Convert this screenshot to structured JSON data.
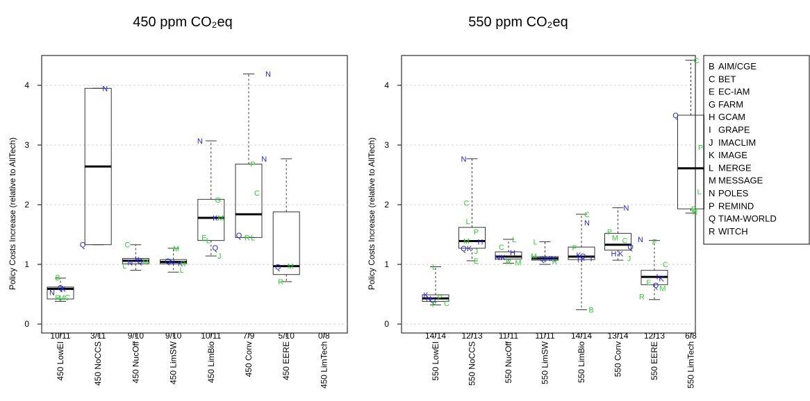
{
  "colors": {
    "blue": "#2222dd",
    "green": "#33cc33",
    "grid": "#d0d0d0",
    "box": "#333333"
  },
  "legend": {
    "items": [
      {
        "code": "B",
        "name": "AIM/CGE"
      },
      {
        "code": "C",
        "name": "BET"
      },
      {
        "code": "E",
        "name": "EC-IAM"
      },
      {
        "code": "G",
        "name": "FARM"
      },
      {
        "code": "H",
        "name": "GCAM"
      },
      {
        "code": "I",
        "name": "GRAPE"
      },
      {
        "code": "J",
        "name": "IMACLIM"
      },
      {
        "code": "K",
        "name": "IMAGE"
      },
      {
        "code": "L",
        "name": "MERGE"
      },
      {
        "code": "M",
        "name": "MESSAGE"
      },
      {
        "code": "N",
        "name": "POLES"
      },
      {
        "code": "P",
        "name": "REMIND"
      },
      {
        "code": "Q",
        "name": "TIAM-WORLD"
      },
      {
        "code": "R",
        "name": "WITCH"
      }
    ]
  },
  "chart_data": [
    {
      "type": "box",
      "title": "450 ppm CO₂eq",
      "ylabel": "Policy Costs Increase (relative to AllTech)",
      "ylim": [
        -0.15,
        4.5
      ],
      "yticks": [
        0,
        1,
        2,
        3,
        4
      ],
      "grid": true,
      "categories": [
        "450 LowEI",
        "450 NoCCS",
        "450 NucOff",
        "450 LimSW",
        "450 LimBio",
        "450 Conv",
        "450 EERE",
        "450 LimTech"
      ],
      "ratios": [
        "10/11",
        "3/11",
        "9/10",
        "9/10",
        "10/11",
        "7/9",
        "5/10",
        "0/8"
      ],
      "boxes": [
        {
          "wlo": 0.38,
          "q1": 0.42,
          "med": 0.59,
          "q3": 0.62,
          "whi": 0.77
        },
        {
          "wlo": 1.33,
          "q1": 1.33,
          "med": 2.64,
          "q3": 3.95,
          "whi": 3.95
        },
        {
          "wlo": 0.9,
          "q1": 1.01,
          "med": 1.06,
          "q3": 1.1,
          "whi": 1.33
        },
        {
          "wlo": 0.87,
          "q1": 1.01,
          "med": 1.04,
          "q3": 1.08,
          "whi": 1.27
        },
        {
          "wlo": 1.14,
          "q1": 1.4,
          "med": 1.78,
          "q3": 2.09,
          "whi": 3.07
        },
        {
          "wlo": 1.45,
          "q1": 1.45,
          "med": 1.84,
          "q3": 2.68,
          "whi": 4.19
        },
        {
          "wlo": 0.71,
          "q1": 0.83,
          "med": 0.97,
          "q3": 1.88,
          "whi": 2.77
        },
        null
      ],
      "points": [
        [
          {
            "m": "B",
            "y": 0.78,
            "dx": -4,
            "c": "green"
          },
          {
            "m": "N",
            "y": 0.53,
            "dx": -12,
            "c": "blue"
          },
          {
            "m": "Q",
            "y": 0.61,
            "dx": 0,
            "c": "blue"
          },
          {
            "m": "K",
            "y": 0.59,
            "dx": 4,
            "c": "blue"
          },
          {
            "m": "C",
            "y": 0.45,
            "dx": 10,
            "c": "green"
          },
          {
            "m": "M",
            "y": 0.44,
            "dx": 2,
            "c": "green"
          },
          {
            "m": "R",
            "y": 0.44,
            "dx": -4,
            "c": "green"
          }
        ],
        [
          {
            "m": "N",
            "y": 3.95,
            "dx": 10,
            "c": "blue"
          },
          {
            "m": "Q",
            "y": 1.33,
            "dx": -22,
            "c": "blue"
          }
        ],
        [
          {
            "m": "C",
            "y": 1.33,
            "dx": -12,
            "c": "green"
          },
          {
            "m": "L",
            "y": 0.98,
            "dx": -16,
            "c": "green"
          },
          {
            "m": "N",
            "y": 1.03,
            "dx": -8,
            "c": "blue"
          },
          {
            "m": "K",
            "y": 1.08,
            "dx": 2,
            "c": "blue"
          },
          {
            "m": "Q",
            "y": 1.06,
            "dx": 6,
            "c": "blue"
          },
          {
            "m": "M",
            "y": 1.05,
            "dx": 14,
            "c": "green"
          }
        ],
        [
          {
            "m": "M",
            "y": 1.27,
            "dx": 4,
            "c": "green"
          },
          {
            "m": "Q",
            "y": 1.06,
            "dx": -8,
            "c": "blue"
          },
          {
            "m": "N",
            "y": 1.04,
            "dx": -2,
            "c": "blue"
          },
          {
            "m": "K",
            "y": 1.02,
            "dx": 10,
            "c": "blue"
          },
          {
            "m": "R",
            "y": 1.01,
            "dx": 14,
            "c": "green"
          },
          {
            "m": "L",
            "y": 0.91,
            "dx": 12,
            "c": "green"
          }
        ],
        [
          {
            "m": "N",
            "y": 3.07,
            "dx": -16,
            "c": "blue"
          },
          {
            "m": "G",
            "y": 2.08,
            "dx": 10,
            "c": "green"
          },
          {
            "m": "K",
            "y": 1.78,
            "dx": 6,
            "c": "blue"
          },
          {
            "m": "M",
            "y": 1.78,
            "dx": 14,
            "c": "green"
          },
          {
            "m": "E",
            "y": 1.45,
            "dx": -10,
            "c": "green"
          },
          {
            "m": "L",
            "y": 1.4,
            "dx": -4,
            "c": "green"
          },
          {
            "m": "Q",
            "y": 1.28,
            "dx": 6,
            "c": "blue"
          },
          {
            "m": "J",
            "y": 1.14,
            "dx": 12,
            "c": "green"
          }
        ],
        [
          {
            "m": "N",
            "y": 4.19,
            "dx": 28,
            "c": "blue"
          },
          {
            "m": "P",
            "y": 2.68,
            "dx": 6,
            "c": "green"
          },
          {
            "m": "C",
            "y": 2.2,
            "dx": 12,
            "c": "green"
          },
          {
            "m": "Q",
            "y": 1.49,
            "dx": -14,
            "c": "blue"
          },
          {
            "m": "R",
            "y": 1.45,
            "dx": -2,
            "c": "green"
          },
          {
            "m": "L",
            "y": 1.45,
            "dx": 6,
            "c": "green"
          }
        ],
        [
          {
            "m": "N",
            "y": 2.77,
            "dx": -32,
            "c": "blue"
          },
          {
            "m": "Q",
            "y": 0.96,
            "dx": -12,
            "c": "blue"
          },
          {
            "m": "M",
            "y": 0.97,
            "dx": 6,
            "c": "green"
          },
          {
            "m": "R",
            "y": 0.71,
            "dx": -8,
            "c": "green"
          }
        ],
        []
      ]
    },
    {
      "type": "box",
      "title": "550 ppm CO₂eq",
      "ylabel": "Policy Costs Increase (relative to AllTech)",
      "ylim": [
        -0.15,
        4.5
      ],
      "yticks": [
        0,
        1,
        2,
        3,
        4
      ],
      "grid": true,
      "categories": [
        "550 LowEI",
        "550 NoCCS",
        "550 NucOff",
        "550 LimSW",
        "550 LimBio",
        "550 Conv",
        "550 EERE",
        "550 LimTech"
      ],
      "ratios": [
        "14/14",
        "12/13",
        "11/11",
        "11/11",
        "14/14",
        "13/14",
        "12/13",
        "6/8"
      ],
      "boxes": [
        {
          "wlo": 0.32,
          "q1": 0.38,
          "med": 0.43,
          "q3": 0.49,
          "whi": 0.96
        },
        {
          "wlo": 1.06,
          "q1": 1.27,
          "med": 1.39,
          "q3": 1.62,
          "whi": 2.77
        },
        {
          "wlo": 1.02,
          "q1": 1.09,
          "med": 1.13,
          "q3": 1.21,
          "whi": 1.42
        },
        {
          "wlo": 1.0,
          "q1": 1.07,
          "med": 1.1,
          "q3": 1.13,
          "whi": 1.38
        },
        {
          "wlo": 0.24,
          "q1": 1.08,
          "med": 1.13,
          "q3": 1.29,
          "whi": 1.84
        },
        {
          "wlo": 1.07,
          "q1": 1.24,
          "med": 1.33,
          "q3": 1.52,
          "whi": 1.95
        },
        {
          "wlo": 0.41,
          "q1": 0.66,
          "med": 0.79,
          "q3": 0.9,
          "whi": 1.4
        },
        {
          "wlo": 1.86,
          "q1": 1.93,
          "med": 2.61,
          "q3": 3.5,
          "whi": 4.42
        }
      ],
      "points": [
        [
          {
            "m": "L",
            "y": 0.96,
            "dx": -2,
            "c": "green"
          },
          {
            "m": "K",
            "y": 0.49,
            "dx": -14,
            "c": "blue"
          },
          {
            "m": "N",
            "y": 0.43,
            "dx": -10,
            "c": "blue"
          },
          {
            "m": "Q",
            "y": 0.4,
            "dx": -4,
            "c": "blue"
          },
          {
            "m": "P",
            "y": 0.45,
            "dx": 6,
            "c": "green"
          },
          {
            "m": "F",
            "y": 0.33,
            "dx": -2,
            "c": "green"
          },
          {
            "m": "C",
            "y": 0.35,
            "dx": 16,
            "c": "green"
          }
        ],
        [
          {
            "m": "N",
            "y": 2.77,
            "dx": -12,
            "c": "blue"
          },
          {
            "m": "C",
            "y": 2.03,
            "dx": -8,
            "c": "green"
          },
          {
            "m": "L",
            "y": 1.72,
            "dx": -6,
            "c": "green"
          },
          {
            "m": "P",
            "y": 1.55,
            "dx": 6,
            "c": "green"
          },
          {
            "m": "M",
            "y": 1.39,
            "dx": -8,
            "c": "green"
          },
          {
            "m": "H",
            "y": 1.38,
            "dx": 12,
            "c": "blue"
          },
          {
            "m": "Q",
            "y": 1.27,
            "dx": -12,
            "c": "blue"
          },
          {
            "m": "K",
            "y": 1.27,
            "dx": -4,
            "c": "blue"
          },
          {
            "m": "J",
            "y": 1.22,
            "dx": 6,
            "c": "green"
          },
          {
            "m": "E",
            "y": 1.06,
            "dx": 6,
            "c": "green"
          }
        ],
        [
          {
            "m": "L",
            "y": 1.42,
            "dx": 8,
            "c": "green"
          },
          {
            "m": "C",
            "y": 1.29,
            "dx": -10,
            "c": "green"
          },
          {
            "m": "N",
            "y": 1.12,
            "dx": -16,
            "c": "blue"
          },
          {
            "m": "K",
            "y": 1.12,
            "dx": -8,
            "c": "blue"
          },
          {
            "m": "H",
            "y": 1.2,
            "dx": 6,
            "c": "blue"
          },
          {
            "m": "R",
            "y": 1.05,
            "dx": 0,
            "c": "green"
          },
          {
            "m": "M",
            "y": 1.03,
            "dx": 14,
            "c": "green"
          }
        ],
        [
          {
            "m": "L",
            "y": 1.38,
            "dx": -14,
            "c": "green"
          },
          {
            "m": "M",
            "y": 1.14,
            "dx": -16,
            "c": "green"
          },
          {
            "m": "Q",
            "y": 1.1,
            "dx": -4,
            "c": "blue"
          },
          {
            "m": "H",
            "y": 1.1,
            "dx": 4,
            "c": "blue"
          },
          {
            "m": "N",
            "y": 1.1,
            "dx": 12,
            "c": "blue"
          },
          {
            "m": "R",
            "y": 1.05,
            "dx": 14,
            "c": "green"
          }
        ],
        [
          {
            "m": "C",
            "y": 1.84,
            "dx": 8,
            "c": "green"
          },
          {
            "m": "N",
            "y": 1.7,
            "dx": 8,
            "c": "blue"
          },
          {
            "m": "P",
            "y": 1.28,
            "dx": -10,
            "c": "green"
          },
          {
            "m": "K",
            "y": 1.16,
            "dx": -4,
            "c": "blue"
          },
          {
            "m": "Q",
            "y": 1.14,
            "dx": 2,
            "c": "blue"
          },
          {
            "m": "H",
            "y": 1.08,
            "dx": -2,
            "c": "blue"
          },
          {
            "m": "I",
            "y": 1.1,
            "dx": 14,
            "c": "blue"
          },
          {
            "m": "B",
            "y": 0.24,
            "dx": 14,
            "c": "green"
          }
        ],
        [
          {
            "m": "N",
            "y": 1.95,
            "dx": 12,
            "c": "blue"
          },
          {
            "m": "P",
            "y": 1.55,
            "dx": -12,
            "c": "green"
          },
          {
            "m": "M",
            "y": 1.45,
            "dx": -4,
            "c": "green"
          },
          {
            "m": "C",
            "y": 1.4,
            "dx": 10,
            "c": "green"
          },
          {
            "m": "Q",
            "y": 1.3,
            "dx": 18,
            "c": "blue"
          },
          {
            "m": "H",
            "y": 1.18,
            "dx": -6,
            "c": "blue"
          },
          {
            "m": "K",
            "y": 1.18,
            "dx": 4,
            "c": "blue"
          },
          {
            "m": "J",
            "y": 1.1,
            "dx": 16,
            "c": "green"
          }
        ],
        [
          {
            "m": "N",
            "y": 1.42,
            "dx": -20,
            "c": "blue"
          },
          {
            "m": "F",
            "y": 1.38,
            "dx": 0,
            "c": "green"
          },
          {
            "m": "C",
            "y": 1.0,
            "dx": 16,
            "c": "green"
          },
          {
            "m": "I",
            "y": 0.8,
            "dx": 4,
            "c": "blue"
          },
          {
            "m": "K",
            "y": 0.76,
            "dx": 10,
            "c": "blue"
          },
          {
            "m": "E",
            "y": 0.7,
            "dx": -8,
            "c": "green"
          },
          {
            "m": "Q",
            "y": 0.65,
            "dx": 2,
            "c": "blue"
          },
          {
            "m": "M",
            "y": 0.6,
            "dx": 12,
            "c": "green"
          },
          {
            "m": "R",
            "y": 0.46,
            "dx": -18,
            "c": "green"
          }
        ],
        [
          {
            "m": "C",
            "y": 4.42,
            "dx": 8,
            "c": "green"
          },
          {
            "m": "Q",
            "y": 3.5,
            "dx": -22,
            "c": "blue"
          },
          {
            "m": "P",
            "y": 2.96,
            "dx": 14,
            "c": "green"
          },
          {
            "m": "L",
            "y": 2.22,
            "dx": 12,
            "c": "green"
          },
          {
            "m": "B",
            "y": 1.93,
            "dx": 4,
            "c": "green"
          },
          {
            "m": "R",
            "y": 1.88,
            "dx": 6,
            "c": "green"
          }
        ]
      ]
    }
  ]
}
